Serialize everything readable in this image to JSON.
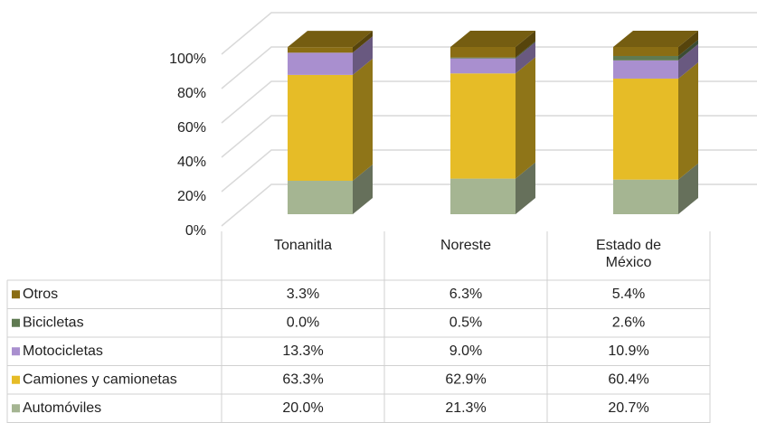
{
  "chart_data": {
    "type": "bar3d_stacked_table",
    "categories": [
      "Tonanitla",
      "Noreste",
      "Estado de México"
    ],
    "series": [
      {
        "name": "Automóviles",
        "color": "#a5b592",
        "values": [
          20.0,
          21.3,
          20.7
        ],
        "value_labels": [
          "20.0%",
          "21.3%",
          "20.7%"
        ]
      },
      {
        "name": "Camiones y camionetas",
        "color": "#e6bc27",
        "values": [
          63.3,
          62.9,
          60.4
        ],
        "value_labels": [
          "63.3%",
          "62.9%",
          "60.4%"
        ]
      },
      {
        "name": "Motocicletas",
        "color": "#a98fcf",
        "values": [
          13.3,
          9.0,
          10.9
        ],
        "value_labels": [
          "13.3%",
          "9.0%",
          "10.9%"
        ]
      },
      {
        "name": "Bicicletas",
        "color": "#5f7a52",
        "values": [
          0.0,
          0.5,
          2.6
        ],
        "value_labels": [
          "0.0%",
          "0.5%",
          "2.6%"
        ]
      },
      {
        "name": "Otros",
        "color": "#8a6d14",
        "values": [
          3.3,
          6.3,
          5.4
        ],
        "value_labels": [
          "3.3%",
          "6.3%",
          "5.4%"
        ]
      }
    ],
    "ylim": [
      0,
      100
    ],
    "yticks": [
      {
        "value": 0,
        "label": "0%"
      },
      {
        "value": 20,
        "label": "20%"
      },
      {
        "value": 40,
        "label": "40%"
      },
      {
        "value": 60,
        "label": "60%"
      },
      {
        "value": 80,
        "label": "80%"
      },
      {
        "value": 100,
        "label": "100%"
      }
    ],
    "grid": true
  }
}
